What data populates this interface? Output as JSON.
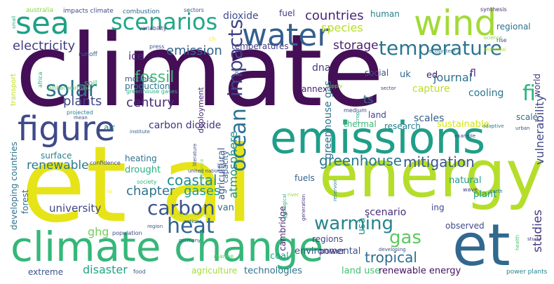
{
  "words": [
    {
      "text": "climate",
      "color": "#440f56"
    },
    {
      "text": "et al",
      "color": "#e6e419"
    },
    {
      "text": "energy",
      "color": "#b5de2b"
    },
    {
      "text": "emissions",
      "color": "#1f9e89"
    },
    {
      "text": "climate change",
      "color": "#35b779"
    },
    {
      "text": "et",
      "color": "#31688e"
    },
    {
      "text": "water",
      "color": "#355f8d"
    },
    {
      "text": "figure",
      "color": "#3e4a89"
    },
    {
      "text": "sea",
      "color": "#1fa188"
    },
    {
      "text": "wind",
      "color": "#a2da37"
    },
    {
      "text": "scenarios",
      "color": "#22a785"
    },
    {
      "text": "temperature",
      "color": "#2a768e"
    },
    {
      "text": "heat",
      "color": "#32658e"
    },
    {
      "text": "carbon",
      "color": "#3a548c"
    },
    {
      "text": "solar",
      "color": "#2d718e"
    },
    {
      "text": "warming",
      "color": "#25848e"
    },
    {
      "text": "ocean",
      "color": "#2c728e"
    },
    {
      "text": "impacts",
      "color": "#414287"
    },
    {
      "text": "greenhouse",
      "color": "#2a788e"
    },
    {
      "text": "mitigation",
      "color": "#39568c"
    },
    {
      "text": "countries",
      "color": "#482576"
    },
    {
      "text": "electricity",
      "color": "#433e85"
    },
    {
      "text": "fossil",
      "color": "#3dbc74"
    },
    {
      "text": "emission",
      "color": "#33638d"
    },
    {
      "text": "plants",
      "color": "#3f4889"
    },
    {
      "text": "century",
      "color": "#472d7b"
    },
    {
      "text": "species",
      "color": "#b8de29"
    },
    {
      "text": "journal",
      "color": "#2c718e"
    },
    {
      "text": "storage",
      "color": "#481f70"
    },
    {
      "text": "coastal",
      "color": "#218f8d"
    },
    {
      "text": "atmosphere",
      "color": "#21918c"
    },
    {
      "text": "vulnerability",
      "color": "#404688"
    },
    {
      "text": "tropical",
      "color": "#2e6d8e"
    },
    {
      "text": "gas",
      "color": "#5ec962"
    },
    {
      "text": "chapter",
      "color": "#2c738e"
    },
    {
      "text": "gases",
      "color": "#1e9b8a"
    },
    {
      "text": "renewable",
      "color": "#2a788e"
    },
    {
      "text": "studies",
      "color": "#433d84"
    },
    {
      "text": "disaster",
      "color": "#21a685"
    },
    {
      "text": "university",
      "color": "#414487"
    },
    {
      "text": "fi",
      "color": "#2db27d"
    },
    {
      "text": "ice",
      "color": "#482878"
    },
    {
      "text": "dioxide",
      "color": "#3e4c8a"
    },
    {
      "text": "fuel",
      "color": "#453581"
    },
    {
      "text": "human",
      "color": "#27808e"
    },
    {
      "text": "regional",
      "color": "#2c718e"
    },
    {
      "text": "dna",
      "color": "#453882"
    },
    {
      "text": "temperatures",
      "color": "#424186"
    },
    {
      "text": "capture",
      "color": "#bade28"
    },
    {
      "text": "cooling",
      "color": "#2a768e"
    },
    {
      "text": "research",
      "color": "#27808e"
    },
    {
      "text": "sustainable",
      "color": "#d5e21a"
    },
    {
      "text": "thermal",
      "color": "#3aba76"
    },
    {
      "text": "agricultural",
      "color": "#3b528b"
    },
    {
      "text": "capacity",
      "color": "#355e8d"
    },
    {
      "text": "carbon dioxide",
      "color": "#46327e"
    },
    {
      "text": "air",
      "color": "#2a788e"
    },
    {
      "text": "heating",
      "color": "#2d708e"
    },
    {
      "text": "drought",
      "color": "#2ab07f"
    },
    {
      "text": "surface",
      "color": "#25838e"
    },
    {
      "text": "natural",
      "color": "#1e9c89"
    },
    {
      "text": "plant",
      "color": "#1f9a8a"
    },
    {
      "text": "fuels",
      "color": "#33638d"
    },
    {
      "text": "regions",
      "color": "#414487"
    },
    {
      "text": "scenario",
      "color": "#472c7a"
    },
    {
      "text": "observed",
      "color": "#3e4989"
    },
    {
      "text": "environmental",
      "color": "#3a548c"
    },
    {
      "text": "power",
      "color": "#472f7d"
    },
    {
      "text": "coal",
      "color": "#1fa187"
    },
    {
      "text": "technologies",
      "color": "#2c728e"
    },
    {
      "text": "land use",
      "color": "#44bf70"
    },
    {
      "text": "renewable energy",
      "color": "#471063"
    },
    {
      "text": "extreme",
      "color": "#3b528b"
    },
    {
      "text": "agriculture",
      "color": "#a5db36"
    },
    {
      "text": "ghg",
      "color": "#75d054"
    },
    {
      "text": "developing countries",
      "color": "#2c738e"
    },
    {
      "text": "forest",
      "color": "#2c728e"
    },
    {
      "text": "usa",
      "color": "#21918c"
    },
    {
      "text": "cambridge",
      "color": "#482173"
    },
    {
      "text": "greenhouse gas",
      "color": "#2c738e"
    },
    {
      "text": "scales",
      "color": "#355f8d"
    },
    {
      "text": "scale",
      "color": "#2e6e8e"
    },
    {
      "text": "ts",
      "color": "#2c718e"
    },
    {
      "text": "social",
      "color": "#3d4e8a"
    },
    {
      "text": "uk",
      "color": "#31688e"
    },
    {
      "text": "ed",
      "color": "#482475"
    },
    {
      "text": "fl",
      "color": "#472a7a"
    },
    {
      "text": "world",
      "color": "#46327e"
    },
    {
      "text": "annex",
      "color": "#482173"
    },
    {
      "text": "land",
      "color": "#3f4788"
    },
    {
      "text": "production",
      "color": "#2c718e"
    },
    {
      "text": "deployment",
      "color": "#472a7a"
    },
    {
      "text": "models",
      "color": "#39558c"
    },
    {
      "text": "soil",
      "color": "#3fbc73"
    },
    {
      "text": "transport",
      "color": "#c0df25"
    },
    {
      "text": "van",
      "color": "#2d718e"
    },
    {
      "text": "ing",
      "color": "#3e4989"
    },
    {
      "text": "australia",
      "color": "#86d549"
    },
    {
      "text": "impacts climate",
      "color": "#3e4989"
    },
    {
      "text": "combustion",
      "color": "#31688e"
    },
    {
      "text": "sectors",
      "color": "#3b518b"
    },
    {
      "text": "synthesis",
      "color": "#482878"
    },
    {
      "text": "variability",
      "color": "#424086"
    },
    {
      "text": "small",
      "color": "#2db27d"
    },
    {
      "text": "press",
      "color": "#39558c"
    },
    {
      "text": "ch",
      "color": "#fde725"
    },
    {
      "text": "runoff",
      "color": "#33638d"
    },
    {
      "text": "global warming",
      "color": "#5ec962"
    },
    {
      "text": "greenhouse gases",
      "color": "#2ab07f"
    },
    {
      "text": "supply",
      "color": "#7ad151"
    },
    {
      "text": "science",
      "color": "#86d549"
    },
    {
      "text": "rise",
      "color": "#3f4889"
    },
    {
      "text": "ecosystem",
      "color": "#2c728e"
    },
    {
      "text": "technical",
      "color": "#b5de2b"
    },
    {
      "text": "oil",
      "color": "#3a548c"
    },
    {
      "text": "africa",
      "color": "#22a884"
    },
    {
      "text": "projected",
      "color": "#26828e"
    },
    {
      "text": "mean",
      "color": "#424186"
    },
    {
      "text": "sector",
      "color": "#3e4a89"
    },
    {
      "text": "medium",
      "color": "#414487"
    },
    {
      "text": "crop",
      "color": "#1fa188"
    },
    {
      "text": "adaptive",
      "color": "#2a788e"
    },
    {
      "text": "example",
      "color": "#424086"
    },
    {
      "text": "urban",
      "color": "#3b528b"
    },
    {
      "text": "institute",
      "color": "#38598c"
    },
    {
      "text": "confidence",
      "color": "#3e4a89"
    },
    {
      "text": "society",
      "color": "#2fb47c"
    },
    {
      "text": "literature",
      "color": "#3e4c8a"
    },
    {
      "text": "box",
      "color": "#3b528b"
    },
    {
      "text": "resilience",
      "color": "#7fd34e"
    },
    {
      "text": "united nations",
      "color": "#3b528b"
    },
    {
      "text": "river",
      "color": "#99d83d"
    },
    {
      "text": "reservoir",
      "color": "#26828e"
    },
    {
      "text": "generation",
      "color": "#46317e"
    },
    {
      "text": "geological",
      "color": "#2db27d"
    },
    {
      "text": "la",
      "color": "#fde725"
    },
    {
      "text": "wave",
      "color": "#3f4889"
    },
    {
      "text": "earth",
      "color": "#27808e"
    },
    {
      "text": "health",
      "color": "#4ac16d"
    },
    {
      "text": "study",
      "color": "#472a7a"
    },
    {
      "text": "region",
      "color": "#39568c"
    },
    {
      "text": "nations",
      "color": "#31688e"
    },
    {
      "text": "ghg emissions",
      "color": "#c2df23"
    },
    {
      "text": "germany",
      "color": "#3b528b"
    },
    {
      "text": "population",
      "color": "#3e4a89"
    },
    {
      "text": "marine",
      "color": "#6ccd5a"
    },
    {
      "text": "developing",
      "color": "#3d4e8a"
    },
    {
      "text": "food",
      "color": "#39568c"
    },
    {
      "text": "power plants",
      "color": "#26828e"
    }
  ]
}
